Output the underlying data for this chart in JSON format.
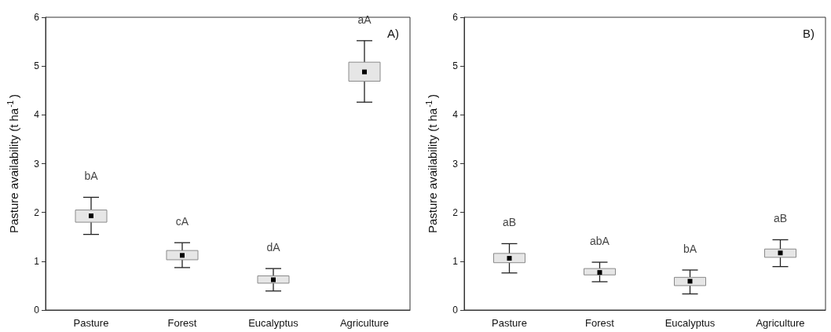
{
  "chart_data": [
    {
      "type": "box",
      "title": "A)",
      "ylabel": "Pasture availability (t ha$^{-1}$)",
      "categories": [
        "Pasture",
        "Forest",
        "Eucalyptus",
        "Agriculture"
      ],
      "ylim": [
        0,
        6
      ],
      "yticks": [
        0,
        1,
        2,
        3,
        4,
        5,
        6
      ],
      "grid": false,
      "color": "#e6e6e6",
      "boxes": [
        {
          "low": 1.55,
          "q1": 1.8,
          "median": 1.93,
          "q3": 2.05,
          "high": 2.31
        },
        {
          "low": 0.87,
          "q1": 1.03,
          "median": 1.12,
          "q3": 1.22,
          "high": 1.38
        },
        {
          "low": 0.39,
          "q1": 0.55,
          "median": 0.62,
          "q3": 0.7,
          "high": 0.85
        },
        {
          "low": 4.26,
          "q1": 4.69,
          "median": 4.88,
          "q3": 5.08,
          "high": 5.52
        }
      ],
      "annotations": [
        "bA",
        "cA",
        "dA",
        "aA"
      ]
    },
    {
      "type": "box",
      "title": "B)",
      "ylabel": "Pasture availability (t ha$^{-1}$)",
      "categories": [
        "Pasture",
        "Forest",
        "Eucalyptus",
        "Agriculture"
      ],
      "ylim": [
        0,
        6
      ],
      "yticks": [
        0,
        1,
        2,
        3,
        4,
        5,
        6
      ],
      "grid": false,
      "color": "#e6e6e6",
      "boxes": [
        {
          "low": 0.76,
          "q1": 0.97,
          "median": 1.06,
          "q3": 1.16,
          "high": 1.36
        },
        {
          "low": 0.58,
          "q1": 0.72,
          "median": 0.77,
          "q3": 0.85,
          "high": 0.98
        },
        {
          "low": 0.33,
          "q1": 0.5,
          "median": 0.59,
          "q3": 0.67,
          "high": 0.82
        },
        {
          "low": 0.89,
          "q1": 1.08,
          "median": 1.17,
          "q3": 1.25,
          "high": 1.44
        }
      ],
      "annotations": [
        "aB",
        "abA",
        "bA",
        "aB"
      ]
    }
  ]
}
